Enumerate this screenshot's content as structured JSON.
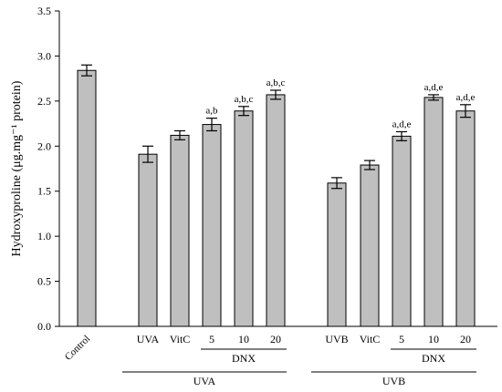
{
  "chart_data": {
    "type": "bar",
    "ylabel": "Hydroxyproline (μg.mg⁻¹ protein)",
    "ylim": [
      0,
      3.5
    ],
    "yticks": [
      "0.0",
      "0.5",
      "1.0",
      "1.5",
      "2.0",
      "2.5",
      "3.0",
      "3.5"
    ],
    "grid": false,
    "bars": [
      {
        "label": "Control",
        "value": 2.84,
        "error": 0.06,
        "annotation": ""
      },
      {
        "label": "UVA",
        "value": 1.91,
        "error": 0.09,
        "annotation": ""
      },
      {
        "label": "VitC",
        "value": 2.12,
        "error": 0.05,
        "annotation": ""
      },
      {
        "label": "5",
        "value": 2.24,
        "error": 0.07,
        "annotation": "a,b"
      },
      {
        "label": "10",
        "value": 2.39,
        "error": 0.05,
        "annotation": "a,b,c"
      },
      {
        "label": "20",
        "value": 2.57,
        "error": 0.05,
        "annotation": "a,b,c"
      },
      {
        "label": "UVB",
        "value": 1.59,
        "error": 0.06,
        "annotation": ""
      },
      {
        "label": "VitC",
        "value": 1.79,
        "error": 0.05,
        "annotation": ""
      },
      {
        "label": "5",
        "value": 2.11,
        "error": 0.05,
        "annotation": "a,d,e"
      },
      {
        "label": "10",
        "value": 2.54,
        "error": 0.03,
        "annotation": "a,d,e"
      },
      {
        "label": "20",
        "value": 2.39,
        "error": 0.07,
        "annotation": "a,d,e"
      }
    ],
    "groups": [
      {
        "label": "DNX",
        "bars": [
          3,
          5
        ],
        "level": 1
      },
      {
        "label": "UVA",
        "bars": [
          1,
          5
        ],
        "level": 2
      },
      {
        "label": "DNX",
        "bars": [
          8,
          10
        ],
        "level": 1
      },
      {
        "label": "UVB",
        "bars": [
          6,
          10
        ],
        "level": 2
      }
    ],
    "colors": {
      "bar_fill": "#bfbfbf",
      "bar_stroke": "#000000"
    }
  }
}
